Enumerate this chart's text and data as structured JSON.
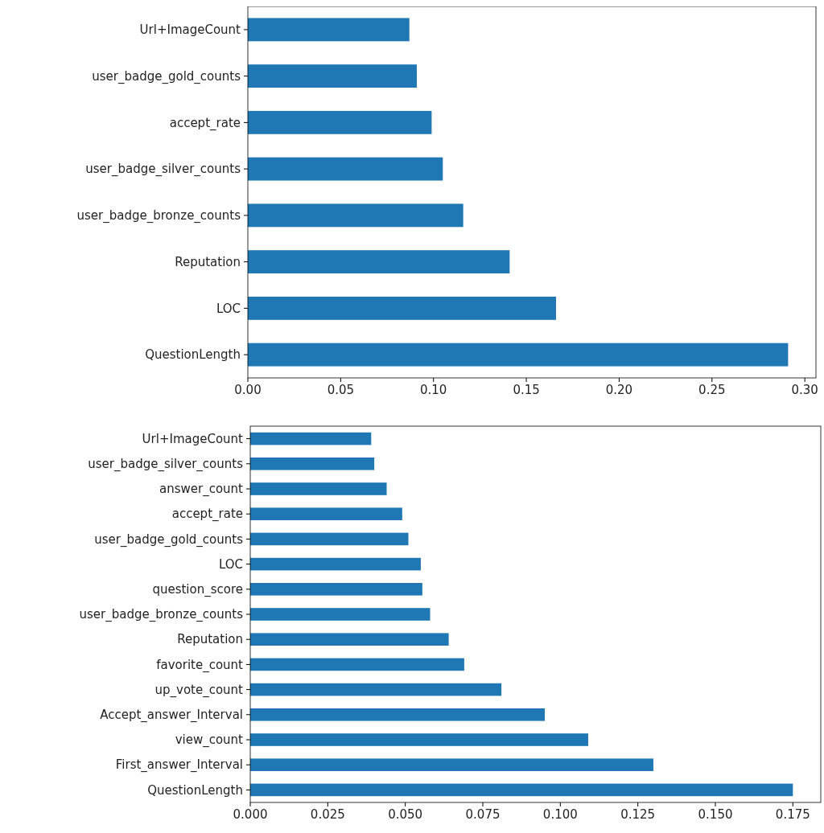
{
  "chart_data": [
    {
      "type": "bar",
      "orientation": "horizontal",
      "categories": [
        "Url+ImageCount",
        "user_badge_gold_counts",
        "accept_rate",
        "user_badge_silver_counts",
        "user_badge_bronze_counts",
        "Reputation",
        "LOC",
        "QuestionLength"
      ],
      "values": [
        0.087,
        0.091,
        0.099,
        0.105,
        0.116,
        0.141,
        0.166,
        0.291
      ],
      "color": "#1f77b4",
      "xlim": [
        0,
        0.306
      ],
      "xticks": [
        {
          "value": 0,
          "label": "0.00"
        },
        0.05,
        {
          "value": 0.1,
          "label": "0.10"
        },
        0.15,
        {
          "value": 0.2,
          "label": "0.20"
        },
        0.25,
        {
          "value": 0.3,
          "label": "0.30"
        }
      ],
      "grid": false
    },
    {
      "type": "bar",
      "orientation": "horizontal",
      "categories": [
        "Url+ImageCount",
        "user_badge_silver_counts",
        "answer_count",
        "accept_rate",
        "user_badge_gold_counts",
        "LOC",
        "question_score",
        "user_badge_bronze_counts",
        "Reputation",
        "favorite_count",
        "up_vote_count",
        "Accept_answer_Interval",
        "view_count",
        "First_answer_Interval",
        "QuestionLength"
      ],
      "values": [
        0.039,
        0.04,
        0.044,
        0.049,
        0.051,
        0.055,
        0.0555,
        0.058,
        0.064,
        0.069,
        0.081,
        0.095,
        0.109,
        0.13,
        0.175
      ],
      "color": "#1f77b4",
      "xlim": [
        0,
        0.184
      ],
      "xticks": [
        {
          "value": 0,
          "label": "0.000"
        },
        0.025,
        {
          "value": 0.05,
          "label": "0.050"
        },
        0.075,
        {
          "value": 0.1,
          "label": "0.100"
        },
        0.125,
        {
          "value": 0.15,
          "label": "0.150"
        },
        0.175
      ],
      "grid": false
    }
  ]
}
